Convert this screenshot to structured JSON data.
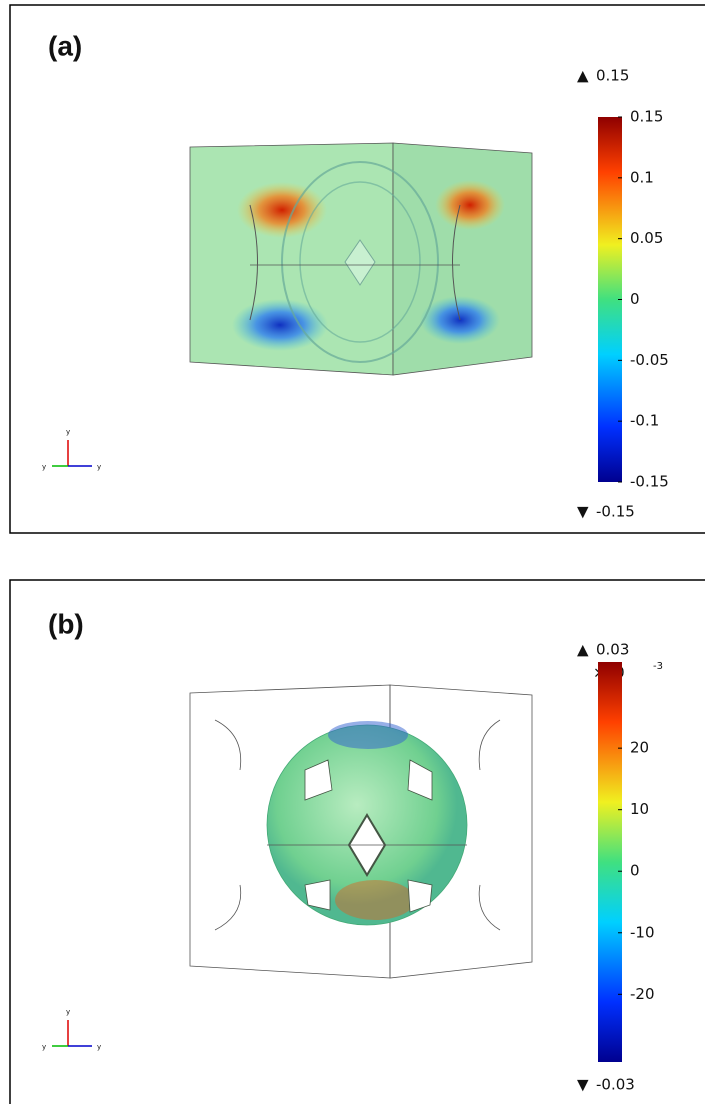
{
  "panels": [
    {
      "label": "(a)",
      "max_label": 0.15,
      "min_label": -0.15,
      "colorbar": {
        "range": [
          -0.15,
          0.15
        ],
        "ticks": [
          0.15,
          0.1,
          0.05,
          0,
          -0.05,
          -0.1,
          -0.15
        ]
      },
      "axes": [
        "y",
        "y",
        "y"
      ]
    },
    {
      "label": "(b)",
      "max_label": 0.03,
      "min_label": -0.03,
      "colorbar": {
        "multiplier": "×10",
        "exponent": "-3",
        "range": [
          -31,
          34
        ],
        "ticks": [
          20,
          10,
          0,
          -10,
          -20
        ]
      },
      "axes": [
        "y",
        "y",
        "y"
      ]
    }
  ]
}
